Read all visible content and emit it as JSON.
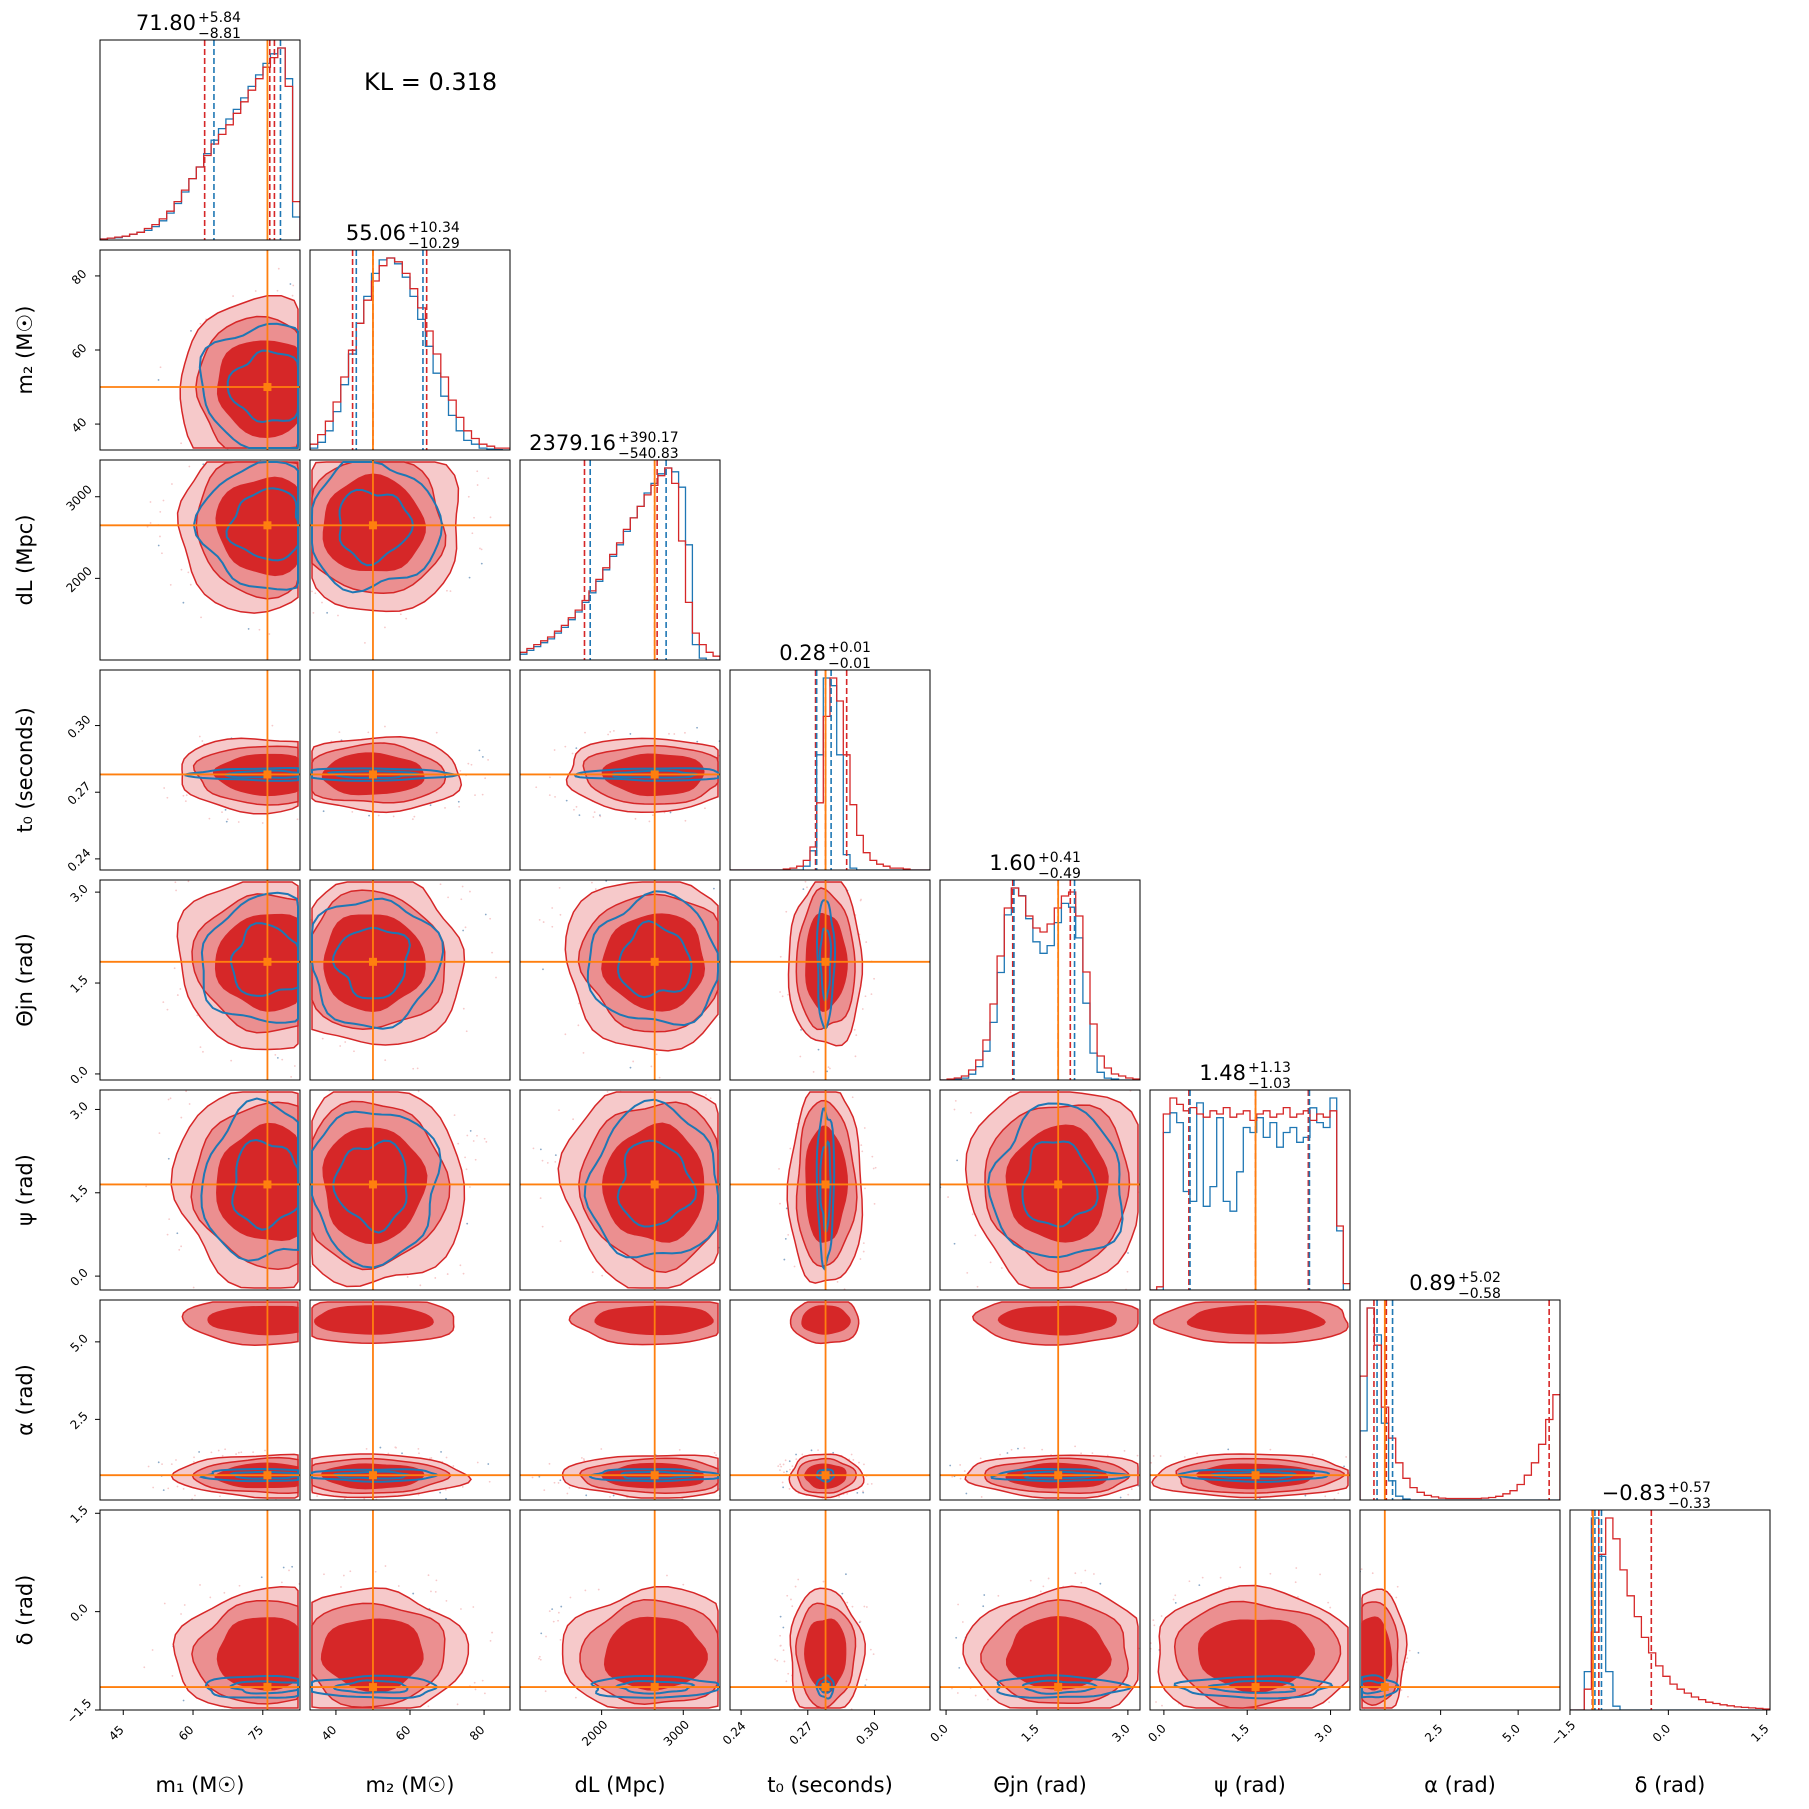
{
  "chart_data": {
    "type": "corner",
    "kl_label": "KL = 0.318",
    "colors": {
      "posterior_a": "#d62728",
      "posterior_b": "#1f77b4",
      "truth": "#ff7f0e",
      "fill_inner": "#d62728",
      "fill_outer": "#eb8f90",
      "fill_outer_light": "#f6c9ca"
    },
    "parameters": [
      {
        "key": "m1",
        "label": "m₁ (M☉)",
        "range": [
          40,
          83
        ],
        "ticks": [
          45,
          60,
          75
        ],
        "tick_labels": [
          "45",
          "60",
          "75"
        ],
        "truth": 76,
        "title_value": "71.80",
        "title_plus": "+5.84",
        "title_minus": "−8.81",
        "q_red": [
          62.5,
          77.5
        ],
        "q_blue": [
          64.5,
          78.8
        ],
        "median": 76.5,
        "hist_red": [
          0.5,
          1,
          1.5,
          2,
          3,
          4,
          6,
          8,
          11,
          15,
          20,
          26,
          32,
          38,
          44,
          50,
          55,
          60,
          66,
          72,
          78,
          84,
          90,
          95,
          100,
          80,
          20
        ],
        "hist_blue": [
          0.5,
          1,
          1.2,
          2,
          3,
          4,
          5,
          7,
          10,
          14,
          19,
          25,
          32,
          38,
          45,
          52,
          58,
          63,
          68,
          74,
          80,
          86,
          92,
          97,
          100,
          84,
          12
        ]
      },
      {
        "key": "m2",
        "label": "m₂ (M☉)",
        "range": [
          33,
          87
        ],
        "ticks": [
          40,
          60,
          80
        ],
        "tick_labels": [
          "40",
          "60",
          "80"
        ],
        "truth": 50,
        "title_value": "55.06",
        "title_plus": "+10.34",
        "title_minus": "−10.29",
        "q_red": [
          44.5,
          64.5
        ],
        "q_blue": [
          45.5,
          63.5
        ],
        "median": 50,
        "hist_red": [
          3,
          8,
          15,
          25,
          38,
          52,
          66,
          78,
          88,
          96,
          100,
          98,
          92,
          84,
          74,
          62,
          50,
          38,
          26,
          17,
          10,
          6,
          3,
          2,
          1,
          1
        ],
        "hist_blue": [
          1,
          4,
          10,
          20,
          34,
          50,
          66,
          80,
          92,
          99,
          100,
          97,
          90,
          80,
          68,
          54,
          40,
          28,
          18,
          10,
          5,
          3,
          1,
          0.5,
          0.2,
          0
        ]
      },
      {
        "key": "dL",
        "label": "dL (Mpc)",
        "range": [
          1000,
          3450
        ],
        "ticks": [
          2000,
          3000
        ],
        "tick_labels": [
          "2000",
          "3000"
        ],
        "truth": 2650,
        "title_value": "2379.16",
        "title_plus": "+390.17",
        "title_minus": "−540.83",
        "q_red": [
          1790,
          2680
        ],
        "q_blue": [
          1860,
          2790
        ],
        "median": 2650,
        "hist_red": [
          4,
          6,
          8,
          10,
          12,
          15,
          18,
          22,
          26,
          31,
          36,
          42,
          48,
          55,
          61,
          68,
          74,
          80,
          86,
          91,
          96,
          100,
          92,
          62,
          30,
          14,
          8,
          4,
          2
        ],
        "hist_blue": [
          3,
          5,
          7,
          9,
          11,
          14,
          17,
          21,
          25,
          30,
          35,
          41,
          47,
          54,
          60,
          67,
          74,
          80,
          87,
          92,
          97,
          100,
          98,
          90,
          60,
          8,
          1,
          0,
          0
        ]
      },
      {
        "key": "t0",
        "label": "t₀ (seconds)",
        "range": [
          0.235,
          0.325
        ],
        "ticks": [
          0.24,
          0.27,
          0.3
        ],
        "tick_labels": [
          "0.24",
          "0.27",
          "0.30"
        ],
        "truth": 0.278,
        "title_value": "0.28",
        "title_plus": "+0.01",
        "title_minus": "−0.01",
        "q_red": [
          0.2735,
          0.2875
        ],
        "q_blue": [
          0.274,
          0.2805
        ],
        "median": 0.278,
        "hist_red": [
          0,
          0,
          0,
          0,
          0,
          0,
          0,
          0,
          0.5,
          1,
          2,
          5,
          12,
          35,
          80,
          100,
          88,
          60,
          34,
          18,
          9,
          5,
          3,
          2,
          1,
          1,
          0.5,
          0,
          0,
          0
        ],
        "hist_blue": [
          0,
          0,
          0,
          0,
          0,
          0,
          0,
          0,
          0,
          0,
          0,
          2,
          10,
          60,
          100,
          96,
          60,
          8,
          1,
          0,
          0,
          0,
          0,
          0,
          0,
          0,
          0,
          0,
          0,
          0
        ]
      },
      {
        "key": "theta",
        "label": "Θjn (rad)",
        "range": [
          -0.1,
          3.2
        ],
        "ticks": [
          0.0,
          1.5,
          3.0
        ],
        "tick_labels": [
          "0.0",
          "1.5",
          "3.0"
        ],
        "truth": 1.85,
        "title_value": "1.60",
        "title_plus": "+0.41",
        "title_minus": "−0.49",
        "q_red": [
          1.1,
          2.05
        ],
        "q_blue": [
          1.12,
          2.12
        ],
        "median": 1.85,
        "hist_red": [
          0,
          0.5,
          1,
          2,
          5,
          10,
          20,
          38,
          62,
          86,
          96,
          92,
          82,
          76,
          74,
          78,
          86,
          92,
          94,
          82,
          54,
          28,
          12,
          6,
          3,
          2,
          1,
          0.5
        ],
        "hist_blue": [
          0,
          0,
          0.5,
          1,
          3,
          7,
          15,
          30,
          56,
          86,
          100,
          96,
          84,
          72,
          66,
          70,
          82,
          92,
          90,
          74,
          40,
          14,
          4,
          1,
          0.5,
          0,
          0,
          0
        ]
      },
      {
        "key": "psi",
        "label": "ψ (rad)",
        "range": [
          -0.25,
          3.35
        ],
        "ticks": [
          0.0,
          1.5,
          3.0
        ],
        "tick_labels": [
          "0.0",
          "1.5",
          "3.0"
        ],
        "truth": 1.65,
        "title_value": "1.48",
        "title_plus": "+1.13",
        "title_minus": "−1.03",
        "q_red": [
          0.45,
          2.6
        ],
        "q_blue": [
          0.47,
          2.62
        ],
        "median": 1.65,
        "hist_red": [
          0,
          1,
          55,
          60,
          58,
          56,
          57,
          55,
          54,
          56,
          55,
          57,
          54,
          55,
          56,
          53,
          55,
          56,
          54,
          55,
          57,
          54,
          55,
          56,
          53,
          55,
          54,
          56,
          20,
          2
        ],
        "hist_blue": [
          0,
          0,
          64,
          72,
          68,
          40,
          36,
          76,
          34,
          42,
          70,
          36,
          32,
          48,
          66,
          64,
          70,
          62,
          68,
          58,
          64,
          66,
          60,
          62,
          74,
          68,
          66,
          78,
          24,
          0
        ]
      },
      {
        "key": "alpha",
        "label": "α (rad)",
        "range": [
          -0.1,
          6.35
        ],
        "ticks": [
          2.5,
          5.0
        ],
        "tick_labels": [
          "2.5",
          "5.0"
        ],
        "truth": 0.7,
        "title_value": "0.89",
        "title_plus": "+5.02",
        "title_minus": "−0.58",
        "q_red": [
          0.35,
          6.0
        ],
        "q_blue": [
          0.45,
          0.95
        ],
        "median": 0.75,
        "hist_red": [
          40,
          62,
          50,
          30,
          20,
          12,
          7,
          4,
          2.5,
          1.5,
          1,
          0.6,
          0.5,
          0.5,
          0.5,
          0.5,
          0.5,
          0.6,
          0.8,
          1.2,
          2,
          3,
          5,
          8,
          12,
          18,
          26,
          34
        ],
        "hist_blue": [
          36,
          100,
          86,
          40,
          10,
          2,
          0.5,
          0,
          0,
          0,
          0,
          0,
          0,
          0,
          0,
          0,
          0,
          0,
          0,
          0,
          0,
          0,
          0,
          0,
          0,
          0,
          0,
          0
        ]
      },
      {
        "key": "delta",
        "label": "δ (rad)",
        "range": [
          -1.5,
          1.55
        ],
        "ticks": [
          -1.5,
          0.0,
          1.5
        ],
        "tick_labels": [
          "−1.5",
          "0.0",
          "1.5"
        ],
        "truth": -1.15,
        "title_value": "−0.83",
        "title_plus": "+0.57",
        "title_minus": "−0.33",
        "q_red": [
          -1.16,
          -0.26
        ],
        "q_blue": [
          -1.12,
          -1.02
        ],
        "median": -1.06,
        "hist_red": [
          0,
          0,
          8,
          30,
          60,
          74,
          66,
          54,
          44,
          36,
          28,
          22,
          17,
          13,
          10,
          8,
          6.5,
          5,
          4,
          3,
          2.5,
          2,
          1.6,
          1.2,
          1,
          0.8,
          0.6,
          0.4
        ],
        "hist_blue": [
          0,
          0,
          20,
          100,
          80,
          20,
          2,
          0,
          0,
          0,
          0,
          0,
          0,
          0,
          0,
          0,
          0,
          0,
          0,
          0,
          0,
          0,
          0,
          0,
          0,
          0,
          0,
          0
        ]
      }
    ]
  }
}
